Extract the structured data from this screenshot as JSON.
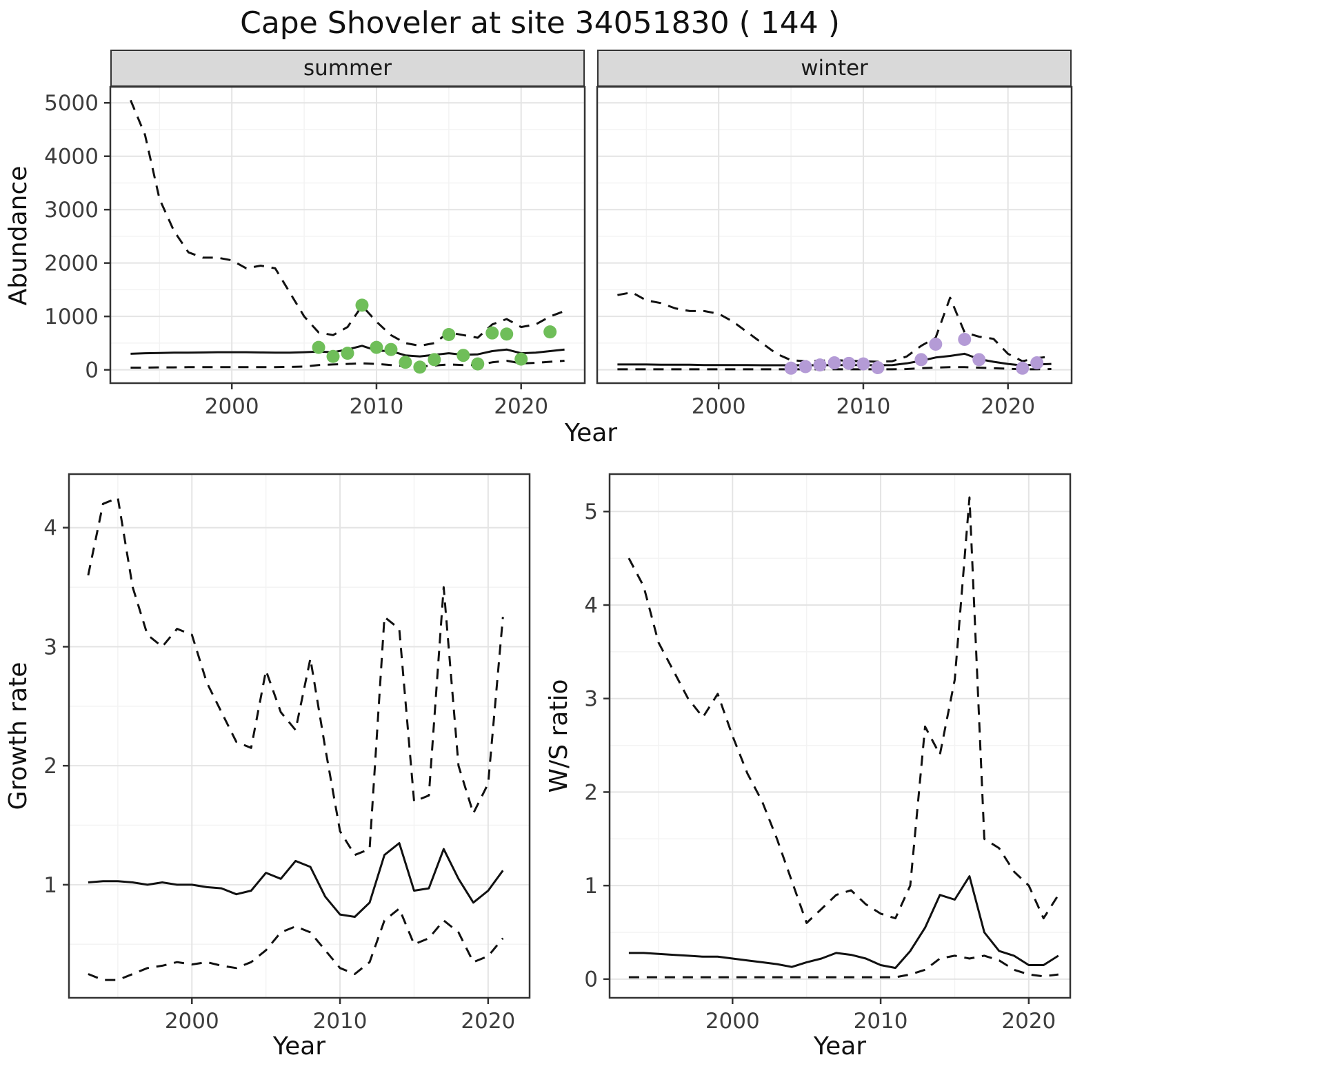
{
  "title": "Cape Shoveler at site 34051830 ( 144 )",
  "top_row": {
    "ylabel": "Abundance",
    "xlabel": "Year"
  },
  "bottom_left": {
    "ylabel": "Growth rate",
    "xlabel": "Year"
  },
  "bottom_right": {
    "ylabel": "W/S ratio",
    "xlabel": "Year"
  },
  "colors": {
    "summer_points": "#6fbe59",
    "winter_points": "#b49bd6"
  },
  "chart_data": [
    {
      "id": "abundance-summer",
      "type": "line",
      "facet_label": "summer",
      "xlabel": "Year",
      "ylabel": "Abundance",
      "xlim": [
        1991.6,
        2024.4
      ],
      "ylim": [
        -250,
        5300
      ],
      "xticks": [
        2000,
        2010,
        2020
      ],
      "yticks": [
        0,
        1000,
        2000,
        3000,
        4000,
        5000
      ],
      "x": [
        1993,
        1994,
        1995,
        1996,
        1997,
        1998,
        1999,
        2000,
        2001,
        2002,
        2003,
        2004,
        2005,
        2006,
        2007,
        2008,
        2009,
        2010,
        2011,
        2012,
        2013,
        2014,
        2015,
        2016,
        2017,
        2018,
        2019,
        2020,
        2021,
        2022,
        2023
      ],
      "series": [
        {
          "name": "upper-ci",
          "style": "dashed",
          "values": [
            5050,
            4400,
            3200,
            2600,
            2200,
            2100,
            2100,
            2050,
            1900,
            1950,
            1900,
            1450,
            1000,
            700,
            650,
            800,
            1200,
            900,
            650,
            500,
            450,
            500,
            700,
            650,
            600,
            850,
            950,
            800,
            850,
            1000,
            1100
          ]
        },
        {
          "name": "median",
          "style": "solid",
          "values": [
            300,
            310,
            315,
            320,
            320,
            325,
            330,
            330,
            330,
            325,
            320,
            320,
            330,
            340,
            330,
            380,
            450,
            360,
            350,
            270,
            250,
            280,
            310,
            280,
            290,
            350,
            380,
            310,
            320,
            350,
            380
          ]
        },
        {
          "name": "lower-ci",
          "style": "dashed",
          "values": [
            40,
            40,
            45,
            45,
            50,
            50,
            50,
            50,
            50,
            50,
            50,
            55,
            60,
            90,
            100,
            110,
            120,
            110,
            90,
            70,
            60,
            80,
            100,
            90,
            90,
            140,
            170,
            120,
            130,
            150,
            170
          ]
        }
      ],
      "points": {
        "name": "summer-counts",
        "color": "#6fbe59",
        "x": [
          2006,
          2007,
          2008,
          2009,
          2010,
          2011,
          2012,
          2013,
          2014,
          2015,
          2016,
          2017,
          2018,
          2019,
          2020,
          2022
        ],
        "y": [
          420,
          250,
          310,
          1210,
          420,
          380,
          140,
          50,
          190,
          660,
          270,
          110,
          690,
          670,
          200,
          710
        ]
      }
    },
    {
      "id": "abundance-winter",
      "type": "line",
      "facet_label": "winter",
      "xlabel": "Year",
      "ylabel": "Abundance",
      "xlim": [
        1991.6,
        2024.4
      ],
      "ylim": [
        -250,
        5300
      ],
      "xticks": [
        2000,
        2010,
        2020
      ],
      "yticks": [
        0,
        1000,
        2000,
        3000,
        4000,
        5000
      ],
      "x": [
        1993,
        1994,
        1995,
        1996,
        1997,
        1998,
        1999,
        2000,
        2001,
        2002,
        2003,
        2004,
        2005,
        2006,
        2007,
        2008,
        2009,
        2010,
        2011,
        2012,
        2013,
        2014,
        2015,
        2016,
        2017,
        2018,
        2019,
        2020,
        2021,
        2022,
        2023
      ],
      "series": [
        {
          "name": "upper-ci",
          "style": "dashed",
          "values": [
            1400,
            1450,
            1300,
            1250,
            1150,
            1100,
            1100,
            1050,
            900,
            700,
            500,
            300,
            180,
            160,
            170,
            180,
            170,
            160,
            150,
            160,
            250,
            450,
            600,
            1350,
            700,
            620,
            580,
            300,
            160,
            220,
            250
          ]
        },
        {
          "name": "median",
          "style": "solid",
          "values": [
            100,
            100,
            100,
            95,
            95,
            95,
            90,
            90,
            90,
            90,
            85,
            85,
            85,
            85,
            85,
            90,
            90,
            90,
            85,
            90,
            120,
            170,
            230,
            260,
            300,
            200,
            150,
            110,
            80,
            100,
            110
          ]
        },
        {
          "name": "lower-ci",
          "style": "dashed",
          "values": [
            10,
            10,
            10,
            10,
            10,
            10,
            10,
            10,
            10,
            10,
            10,
            10,
            10,
            10,
            10,
            10,
            10,
            10,
            10,
            10,
            15,
            30,
            40,
            50,
            50,
            40,
            30,
            20,
            10,
            10,
            15
          ]
        }
      ],
      "points": {
        "name": "winter-counts",
        "color": "#b49bd6",
        "x": [
          2005,
          2006,
          2007,
          2008,
          2009,
          2010,
          2011,
          2014,
          2015,
          2017,
          2018,
          2021,
          2022
        ],
        "y": [
          30,
          60,
          90,
          130,
          120,
          110,
          40,
          190,
          480,
          570,
          190,
          30,
          130
        ]
      }
    },
    {
      "id": "growth-rate",
      "type": "line",
      "facet_label": "",
      "xlabel": "Year",
      "ylabel": "Growth rate",
      "xlim": [
        1991.7,
        2022.8
      ],
      "ylim": [
        0.05,
        4.45
      ],
      "xticks": [
        2000,
        2010,
        2020
      ],
      "yticks": [
        1,
        2,
        3,
        4
      ],
      "x": [
        1993,
        1994,
        1995,
        1996,
        1997,
        1998,
        1999,
        2000,
        2001,
        2002,
        2003,
        2004,
        2005,
        2006,
        2007,
        2008,
        2009,
        2010,
        2011,
        2012,
        2013,
        2014,
        2015,
        2016,
        2017,
        2018,
        2019,
        2020,
        2021
      ],
      "series": [
        {
          "name": "upper-ci",
          "style": "dashed",
          "values": [
            3.6,
            4.2,
            4.25,
            3.5,
            3.1,
            3.0,
            3.15,
            3.1,
            2.7,
            2.45,
            2.2,
            2.15,
            2.8,
            2.45,
            2.3,
            2.9,
            2.15,
            1.45,
            1.25,
            1.3,
            3.25,
            3.15,
            1.7,
            1.75,
            3.5,
            2.0,
            1.6,
            1.85,
            3.25
          ]
        },
        {
          "name": "median",
          "style": "solid",
          "values": [
            1.02,
            1.03,
            1.03,
            1.02,
            1.0,
            1.02,
            1.0,
            1.0,
            0.98,
            0.97,
            0.92,
            0.95,
            1.1,
            1.05,
            1.2,
            1.15,
            0.9,
            0.75,
            0.73,
            0.85,
            1.25,
            1.35,
            0.95,
            0.97,
            1.3,
            1.05,
            0.85,
            0.95,
            1.12
          ]
        },
        {
          "name": "lower-ci",
          "style": "dashed",
          "values": [
            0.25,
            0.2,
            0.2,
            0.25,
            0.3,
            0.32,
            0.35,
            0.33,
            0.35,
            0.32,
            0.3,
            0.35,
            0.45,
            0.6,
            0.65,
            0.6,
            0.45,
            0.3,
            0.25,
            0.35,
            0.7,
            0.8,
            0.5,
            0.55,
            0.7,
            0.6,
            0.35,
            0.4,
            0.55
          ]
        }
      ],
      "points": null
    },
    {
      "id": "ws-ratio",
      "type": "line",
      "facet_label": "",
      "xlabel": "Year",
      "ylabel": "W/S ratio",
      "xlim": [
        1991.7,
        2022.8
      ],
      "ylim": [
        -0.2,
        5.4
      ],
      "xticks": [
        2000,
        2010,
        2020
      ],
      "yticks": [
        0,
        1,
        2,
        3,
        4,
        5
      ],
      "x": [
        1993,
        1994,
        1995,
        1996,
        1997,
        1998,
        1999,
        2000,
        2001,
        2002,
        2003,
        2004,
        2005,
        2006,
        2007,
        2008,
        2009,
        2010,
        2011,
        2012,
        2013,
        2014,
        2015,
        2016,
        2017,
        2018,
        2019,
        2020,
        2021,
        2022
      ],
      "series": [
        {
          "name": "upper-ci",
          "style": "dashed",
          "values": [
            4.5,
            4.2,
            3.6,
            3.3,
            3.0,
            2.8,
            3.05,
            2.6,
            2.2,
            1.9,
            1.5,
            1.05,
            0.6,
            0.75,
            0.9,
            0.95,
            0.8,
            0.7,
            0.65,
            1.0,
            2.7,
            2.4,
            3.2,
            5.15,
            1.5,
            1.4,
            1.15,
            1.0,
            0.65,
            0.9
          ]
        },
        {
          "name": "median",
          "style": "solid",
          "values": [
            0.28,
            0.28,
            0.27,
            0.26,
            0.25,
            0.24,
            0.24,
            0.22,
            0.2,
            0.18,
            0.16,
            0.13,
            0.18,
            0.22,
            0.28,
            0.26,
            0.22,
            0.15,
            0.12,
            0.3,
            0.55,
            0.9,
            0.85,
            1.1,
            0.5,
            0.3,
            0.25,
            0.15,
            0.15,
            0.25
          ]
        },
        {
          "name": "lower-ci",
          "style": "dashed",
          "values": [
            0.02,
            0.02,
            0.02,
            0.02,
            0.02,
            0.02,
            0.02,
            0.02,
            0.02,
            0.02,
            0.02,
            0.02,
            0.02,
            0.02,
            0.02,
            0.02,
            0.02,
            0.02,
            0.02,
            0.05,
            0.1,
            0.22,
            0.25,
            0.22,
            0.25,
            0.2,
            0.1,
            0.05,
            0.03,
            0.05
          ]
        }
      ],
      "points": null
    }
  ]
}
